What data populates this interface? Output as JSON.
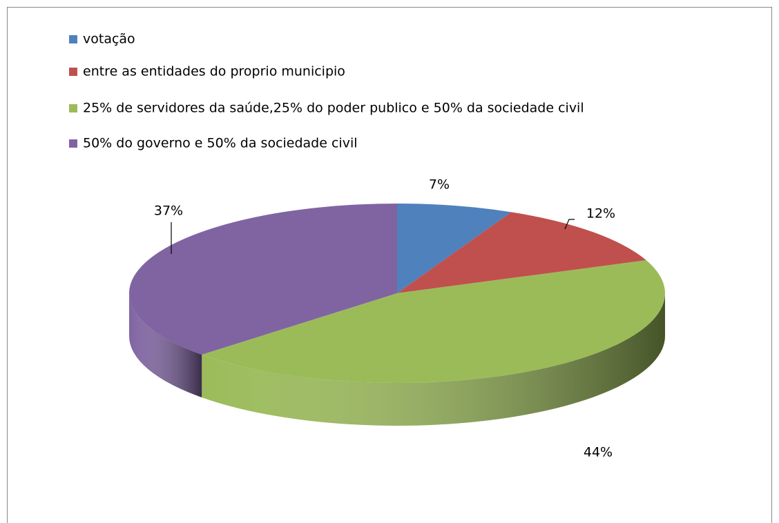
{
  "chart_data": {
    "type": "pie",
    "categories": [
      "votação",
      "entre as entidades do proprio municipio",
      "25% de servidores da saúde,25% do poder publico e 50% da sociedade civil",
      "50% do governo e 50% da sociedade civil"
    ],
    "values": [
      7,
      12,
      44,
      37
    ],
    "value_labels": [
      "7%",
      "12%",
      "44%",
      "37%"
    ],
    "colors": [
      "#4f81bd",
      "#c0504d",
      "#9bbb59",
      "#8064a2"
    ],
    "legend": "top"
  }
}
